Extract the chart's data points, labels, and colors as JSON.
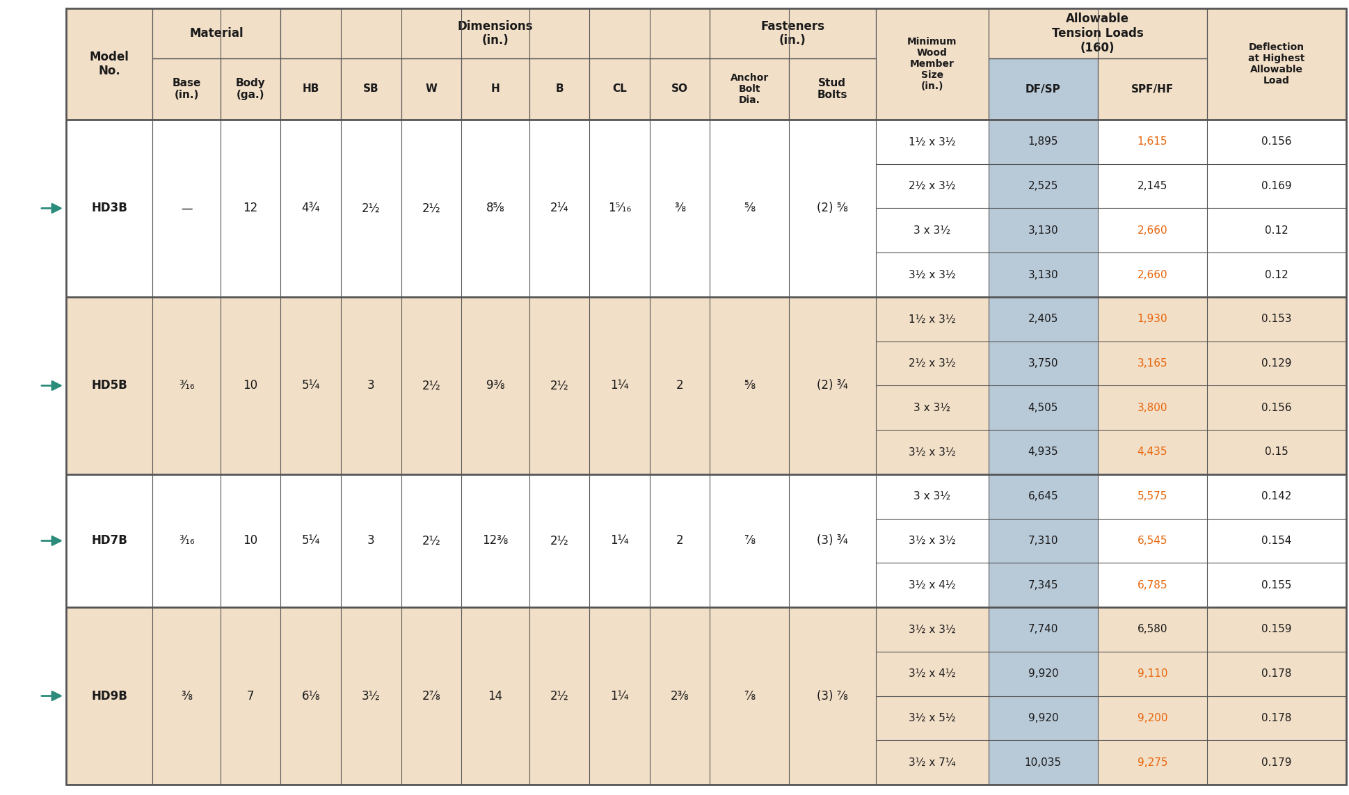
{
  "bg_color": "#FFFFFF",
  "header_bg": "#F2DFC8",
  "header_bg2": "#B8C9D8",
  "orange_color": "#E8650A",
  "dark_text": "#1A1A1A",
  "arrow_color": "#2C8C7C",
  "border_color": "#555555",
  "tan_bg": "#F2DFC8",
  "white_bg": "#FFFFFF",
  "models": [
    {
      "name": "HD3B",
      "base": "—",
      "body": "12",
      "HB": "4¾",
      "SB": "2½",
      "W": "2½",
      "H": "8⅝",
      "B": "2¼",
      "CL": "1⁵⁄₁₆",
      "SO": "⅜",
      "anchor": "⅝",
      "stud": "(2) ⅝",
      "rows": [
        {
          "wood": "1½ x 3½",
          "dfsp": "1,895",
          "spfhf": "1,615",
          "spfhf_orange": true,
          "defl": "0.156"
        },
        {
          "wood": "2½ x 3½",
          "dfsp": "2,525",
          "spfhf": "2,145",
          "spfhf_orange": false,
          "defl": "0.169"
        },
        {
          "wood": "3 x 3½",
          "dfsp": "3,130",
          "spfhf": "2,660",
          "spfhf_orange": true,
          "defl": "0.12"
        },
        {
          "wood": "3½ x 3½",
          "dfsp": "3,130",
          "spfhf": "2,660",
          "spfhf_orange": true,
          "defl": "0.12"
        }
      ]
    },
    {
      "name": "HD5B",
      "base": "³⁄₁₆",
      "body": "10",
      "HB": "5¼",
      "SB": "3",
      "W": "2½",
      "H": "9⅜",
      "B": "2½",
      "CL": "1¼",
      "SO": "2",
      "anchor": "⅝",
      "stud": "(2) ¾",
      "rows": [
        {
          "wood": "1½ x 3½",
          "dfsp": "2,405",
          "spfhf": "1,930",
          "spfhf_orange": true,
          "defl": "0.153"
        },
        {
          "wood": "2½ x 3½",
          "dfsp": "3,750",
          "spfhf": "3,165",
          "spfhf_orange": true,
          "defl": "0.129"
        },
        {
          "wood": "3 x 3½",
          "dfsp": "4,505",
          "spfhf": "3,800",
          "spfhf_orange": true,
          "defl": "0.156"
        },
        {
          "wood": "3½ x 3½",
          "dfsp": "4,935",
          "spfhf": "4,435",
          "spfhf_orange": true,
          "defl": "0.15"
        }
      ]
    },
    {
      "name": "HD7B",
      "base": "³⁄₁₆",
      "body": "10",
      "HB": "5¼",
      "SB": "3",
      "W": "2½",
      "H": "12⅜",
      "B": "2½",
      "CL": "1¼",
      "SO": "2",
      "anchor": "⅞",
      "stud": "(3) ¾",
      "rows": [
        {
          "wood": "3 x 3½",
          "dfsp": "6,645",
          "spfhf": "5,575",
          "spfhf_orange": true,
          "defl": "0.142"
        },
        {
          "wood": "3½ x 3½",
          "dfsp": "7,310",
          "spfhf": "6,545",
          "spfhf_orange": true,
          "defl": "0.154"
        },
        {
          "wood": "3½ x 4½",
          "dfsp": "7,345",
          "spfhf": "6,785",
          "spfhf_orange": true,
          "defl": "0.155"
        }
      ]
    },
    {
      "name": "HD9B",
      "base": "⅜",
      "body": "7",
      "HB": "6⅛",
      "SB": "3½",
      "W": "2⅞",
      "H": "14",
      "B": "2½",
      "CL": "1¼",
      "SO": "2⅜",
      "anchor": "⅞",
      "stud": "(3) ⅞",
      "rows": [
        {
          "wood": "3½ x 3½",
          "dfsp": "7,740",
          "spfhf": "6,580",
          "spfhf_orange": false,
          "defl": "0.159"
        },
        {
          "wood": "3½ x 4½",
          "dfsp": "9,920",
          "spfhf": "9,110",
          "spfhf_orange": true,
          "defl": "0.178"
        },
        {
          "wood": "3½ x 5½",
          "dfsp": "9,920",
          "spfhf": "9,200",
          "spfhf_orange": true,
          "defl": "0.178"
        },
        {
          "wood": "3½ x 7¼",
          "dfsp": "10,035",
          "spfhf": "9,275",
          "spfhf_orange": true,
          "defl": "0.179"
        }
      ]
    }
  ]
}
